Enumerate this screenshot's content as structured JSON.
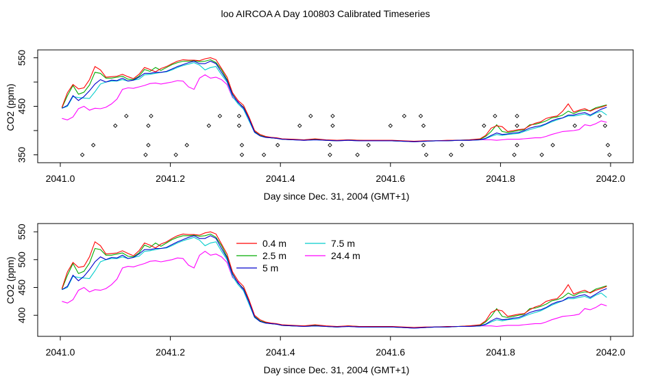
{
  "title": "loo AIRCOA A  Day 100803  Calibrated Timeseries",
  "chart_data": [
    {
      "type": "line",
      "xlabel": "Day since Dec. 31, 2004 (GMT+1)",
      "ylabel": "CO2 (ppm)",
      "xlim": [
        2041.0,
        2042.0
      ],
      "ylim": [
        345,
        555
      ],
      "xticks": [
        "2041.0",
        "2041.2",
        "2041.4",
        "2041.6",
        "2041.8",
        "2042.0"
      ],
      "yticks": [
        "350",
        "450",
        "550"
      ],
      "markers": {
        "name": "",
        "points": [
          [
            2041.04,
            350
          ],
          [
            2041.06,
            370
          ],
          [
            2041.1,
            410
          ],
          [
            2041.12,
            430
          ],
          [
            2041.155,
            350
          ],
          [
            2041.16,
            370
          ],
          [
            2041.16,
            410
          ],
          [
            2041.165,
            430
          ],
          [
            2041.21,
            350
          ],
          [
            2041.23,
            370
          ],
          [
            2041.27,
            410
          ],
          [
            2041.29,
            430
          ],
          [
            2041.325,
            430
          ],
          [
            2041.325,
            410
          ],
          [
            2041.33,
            370
          ],
          [
            2041.33,
            350
          ],
          [
            2041.37,
            350
          ],
          [
            2041.395,
            370
          ],
          [
            2041.435,
            410
          ],
          [
            2041.455,
            430
          ],
          [
            2041.49,
            350
          ],
          [
            2041.49,
            370
          ],
          [
            2041.495,
            410
          ],
          [
            2041.495,
            430
          ],
          [
            2041.54,
            350
          ],
          [
            2041.56,
            370
          ],
          [
            2041.6,
            410
          ],
          [
            2041.625,
            430
          ],
          [
            2041.655,
            430
          ],
          [
            2041.66,
            410
          ],
          [
            2041.66,
            370
          ],
          [
            2041.665,
            350
          ],
          [
            2041.71,
            350
          ],
          [
            2041.73,
            370
          ],
          [
            2041.77,
            410
          ],
          [
            2041.79,
            430
          ],
          [
            2041.825,
            350
          ],
          [
            2041.83,
            370
          ],
          [
            2041.83,
            410
          ],
          [
            2041.83,
            430
          ],
          [
            2041.875,
            350
          ],
          [
            2041.895,
            370
          ],
          [
            2041.935,
            410
          ],
          [
            2041.98,
            430
          ],
          [
            2041.99,
            410
          ],
          [
            2041.995,
            370
          ],
          [
            2041.998,
            350
          ]
        ]
      },
      "series": [
        {
          "name": "0.4 m",
          "color": "#ff0000"
        },
        {
          "name": "2.5 m",
          "color": "#00aa00"
        },
        {
          "name": "5 m",
          "color": "#0000cc"
        },
        {
          "name": "7.5 m",
          "color": "#00cccc"
        },
        {
          "name": "24.4 m",
          "color": "#ff00ff"
        }
      ]
    },
    {
      "type": "line",
      "xlabel": "Day since Dec. 31, 2004 (GMT+1)",
      "ylabel": "CO2 (ppm)",
      "xlim": [
        2041.0,
        2042.0
      ],
      "ylim": [
        372,
        555
      ],
      "xticks": [
        "2041.0",
        "2041.2",
        "2041.4",
        "2041.6",
        "2041.8",
        "2042.0"
      ],
      "yticks": [
        "400",
        "450",
        "500",
        "550"
      ],
      "legend_position": "top-center",
      "legend": [
        {
          "name": "0.4 m",
          "color": "#ff0000"
        },
        {
          "name": "2.5 m",
          "color": "#00aa00"
        },
        {
          "name": "5 m",
          "color": "#0000cc"
        },
        {
          "name": "7.5 m",
          "color": "#00cccc"
        },
        {
          "name": "24.4 m",
          "color": "#ff00ff"
        }
      ]
    }
  ],
  "shared_series": {
    "x": [
      2041.003,
      2041.013,
      2041.023,
      2041.033,
      2041.043,
      2041.053,
      2041.063,
      2041.073,
      2041.083,
      2041.093,
      2041.103,
      2041.113,
      2041.123,
      2041.133,
      2041.143,
      2041.153,
      2041.163,
      2041.173,
      2041.183,
      2041.193,
      2041.203,
      2041.213,
      2041.223,
      2041.233,
      2041.243,
      2041.253,
      2041.263,
      2041.273,
      2041.283,
      2041.293,
      2041.303,
      2041.313,
      2041.323,
      2041.333,
      2041.343,
      2041.353,
      2041.363,
      2041.373,
      2041.383,
      2041.393,
      2041.403,
      2041.423,
      2041.443,
      2041.463,
      2041.483,
      2041.503,
      2041.523,
      2041.543,
      2041.563,
      2041.583,
      2041.603,
      2041.623,
      2041.643,
      2041.663,
      2041.683,
      2041.703,
      2041.723,
      2041.743,
      2041.763,
      2041.773,
      2041.783,
      2041.793,
      2041.803,
      2041.813,
      2041.823,
      2041.833,
      2041.843,
      2041.853,
      2041.863,
      2041.873,
      2041.883,
      2041.893,
      2041.903,
      2041.913,
      2041.923,
      2041.933,
      2041.943,
      2041.953,
      2041.963,
      2041.973,
      2041.983,
      2041.993
    ],
    "values": {
      "0.4 m": [
        448,
        478,
        495,
        486,
        488,
        505,
        532,
        525,
        510,
        511,
        512,
        516,
        511,
        507,
        516,
        530,
        526,
        521,
        528,
        532,
        538,
        543,
        546,
        545,
        545,
        544,
        548,
        550,
        546,
        528,
        510,
        478,
        462,
        452,
        428,
        400,
        392,
        388,
        386,
        385,
        383,
        382,
        381,
        383,
        381,
        380,
        381,
        380,
        380,
        380,
        380,
        379,
        378,
        379,
        379,
        380,
        380,
        381,
        383,
        390,
        405,
        410,
        408,
        398,
        400,
        402,
        403,
        410,
        415,
        418,
        425,
        428,
        430,
        440,
        455,
        438,
        442,
        445,
        440,
        445,
        448,
        452
      ],
      "2.5 m": [
        447,
        472,
        493,
        475,
        479,
        494,
        520,
        518,
        508,
        508,
        510,
        512,
        506,
        505,
        512,
        526,
        522,
        530,
        524,
        530,
        536,
        540,
        543,
        543,
        544,
        542,
        543,
        546,
        540,
        525,
        505,
        475,
        458,
        448,
        425,
        398,
        390,
        387,
        385,
        384,
        382,
        381,
        381,
        382,
        380,
        379,
        381,
        380,
        379,
        379,
        379,
        378,
        378,
        378,
        379,
        379,
        380,
        381,
        382,
        388,
        398,
        412,
        398,
        396,
        398,
        400,
        402,
        412,
        413,
        416,
        420,
        426,
        428,
        432,
        440,
        435,
        440,
        442,
        441,
        447,
        450,
        453
      ],
      "5 m": [
        446,
        452,
        472,
        462,
        470,
        482,
        496,
        505,
        500,
        504,
        503,
        508,
        502,
        504,
        510,
        518,
        518,
        520,
        520,
        522,
        527,
        532,
        536,
        540,
        543,
        538,
        538,
        543,
        538,
        520,
        503,
        474,
        458,
        447,
        424,
        397,
        389,
        386,
        385,
        384,
        382,
        381,
        380,
        381,
        380,
        379,
        380,
        379,
        379,
        379,
        379,
        378,
        377,
        378,
        379,
        379,
        380,
        380,
        381,
        384,
        390,
        395,
        392,
        393,
        395,
        396,
        400,
        405,
        408,
        410,
        414,
        420,
        424,
        426,
        432,
        432,
        435,
        437,
        432,
        438,
        444,
        448
      ],
      "7.5 m": [
        446,
        450,
        470,
        468,
        467,
        466,
        480,
        496,
        500,
        502,
        502,
        505,
        502,
        504,
        506,
        515,
        516,
        518,
        520,
        521,
        525,
        530,
        534,
        537,
        540,
        535,
        525,
        530,
        532,
        515,
        500,
        470,
        455,
        444,
        420,
        396,
        389,
        386,
        385,
        384,
        382,
        381,
        380,
        381,
        380,
        379,
        380,
        379,
        379,
        379,
        379,
        378,
        377,
        378,
        379,
        379,
        380,
        380,
        381,
        383,
        388,
        392,
        390,
        392,
        393,
        394,
        398,
        402,
        405,
        408,
        413,
        418,
        422,
        426,
        430,
        430,
        432,
        434,
        430,
        436,
        440,
        432
      ],
      "24.4 m": [
        425,
        422,
        428,
        445,
        450,
        442,
        446,
        445,
        448,
        455,
        465,
        485,
        488,
        487,
        490,
        493,
        497,
        498,
        496,
        498,
        500,
        503,
        502,
        490,
        485,
        508,
        515,
        508,
        510,
        505,
        495,
        468,
        460,
        444,
        420,
        396,
        389,
        386,
        385,
        384,
        382,
        381,
        380,
        381,
        380,
        379,
        380,
        379,
        379,
        379,
        379,
        378,
        377,
        378,
        379,
        379,
        380,
        380,
        381,
        381,
        381,
        380,
        381,
        382,
        382,
        382,
        383,
        384,
        385,
        385,
        388,
        392,
        395,
        398,
        399,
        400,
        402,
        412,
        410,
        414,
        420,
        417
      ]
    }
  }
}
